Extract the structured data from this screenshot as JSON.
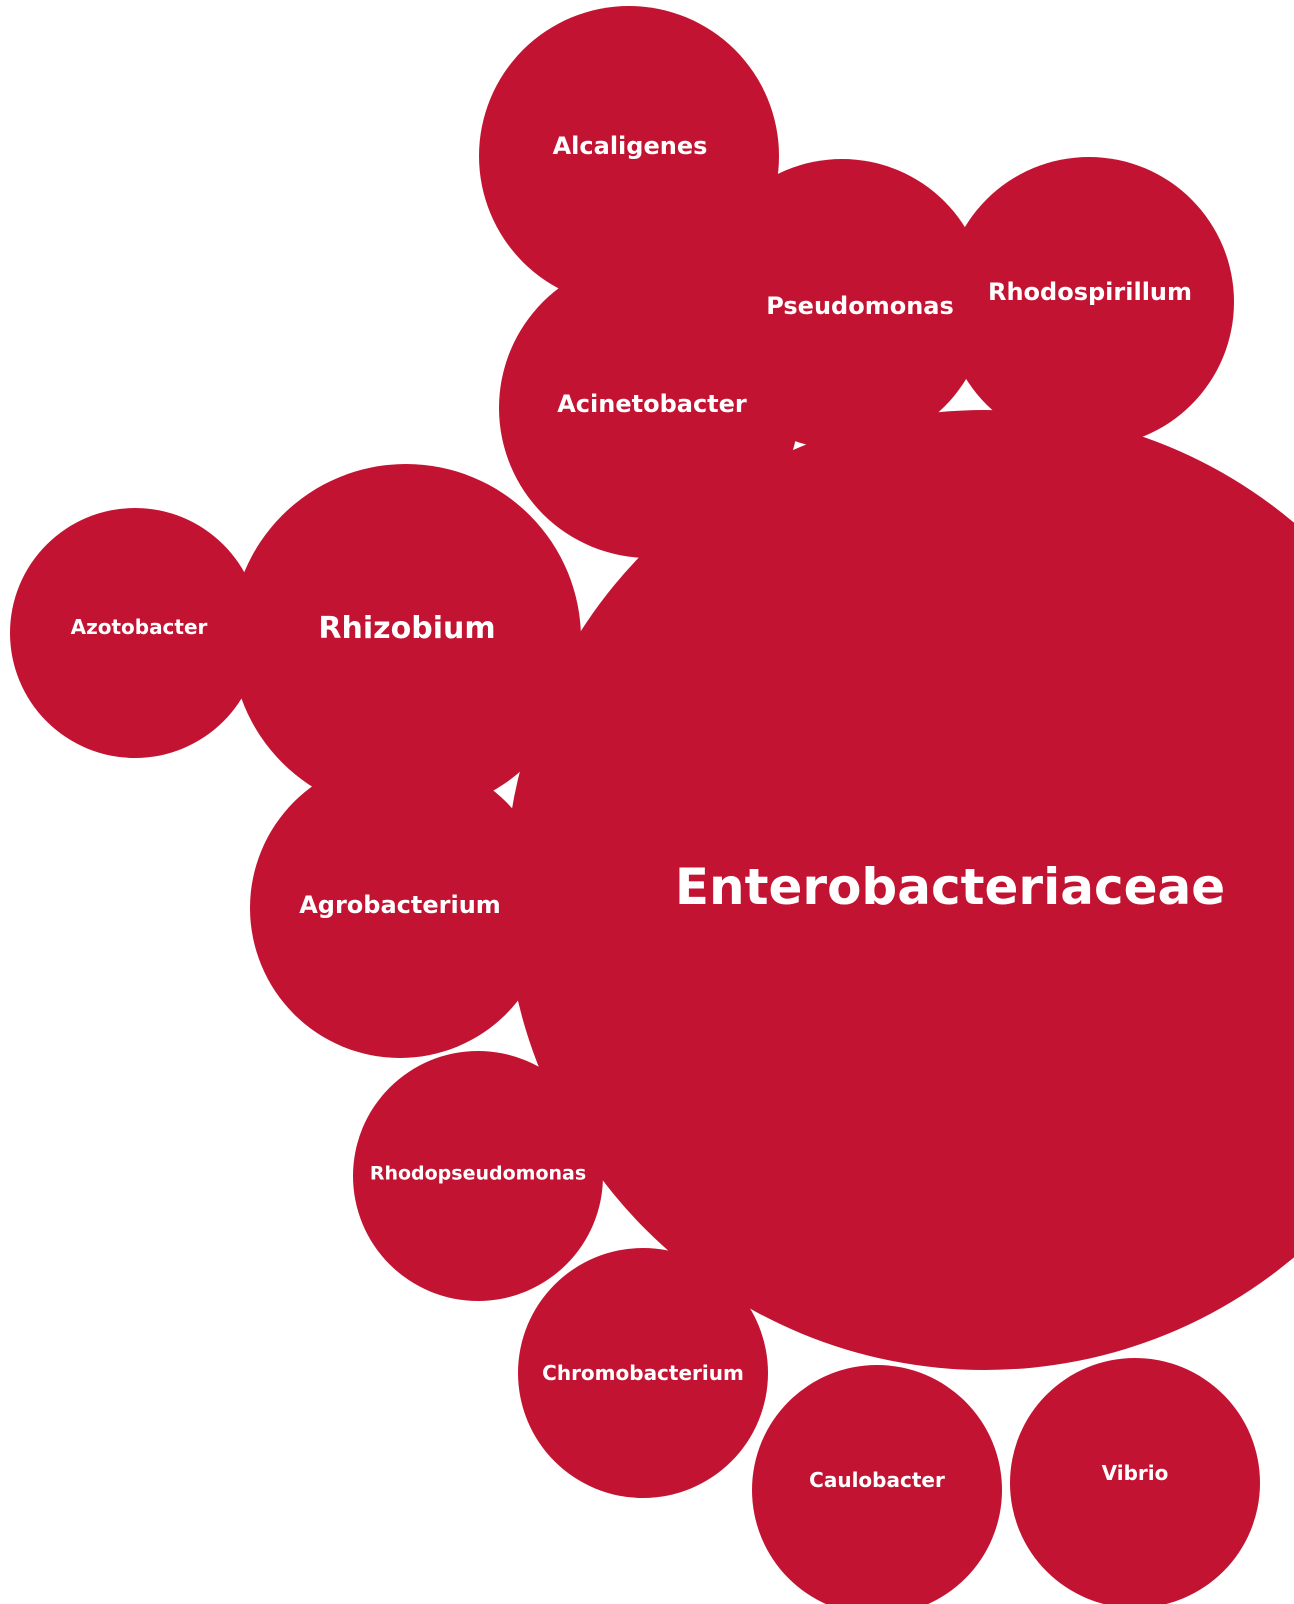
{
  "colors": {
    "bubble": "#c21432",
    "label": "#ffffff"
  },
  "bubbles": [
    {
      "id": "alcaligenes",
      "label": "Alcaligenes"
    },
    {
      "id": "pseudomonas",
      "label": "Pseudomonas"
    },
    {
      "id": "rhodospirillum",
      "label": "Rhodospirillum"
    },
    {
      "id": "acinetobacter",
      "label": "Acinetobacter"
    },
    {
      "id": "enterobacteriaceae",
      "label": "Enterobacteriaceae"
    },
    {
      "id": "azotobacter",
      "label": "Azotobacter"
    },
    {
      "id": "rhizobium",
      "label": "Rhizobium"
    },
    {
      "id": "agrobacterium",
      "label": "Agrobacterium"
    },
    {
      "id": "rhodopseudomonas",
      "label": "Rhodopseudomonas"
    },
    {
      "id": "chromobacterium",
      "label": "Chromobacterium"
    },
    {
      "id": "caulobacter",
      "label": "Caulobacter"
    },
    {
      "id": "vibrio",
      "label": "Vibrio"
    }
  ]
}
